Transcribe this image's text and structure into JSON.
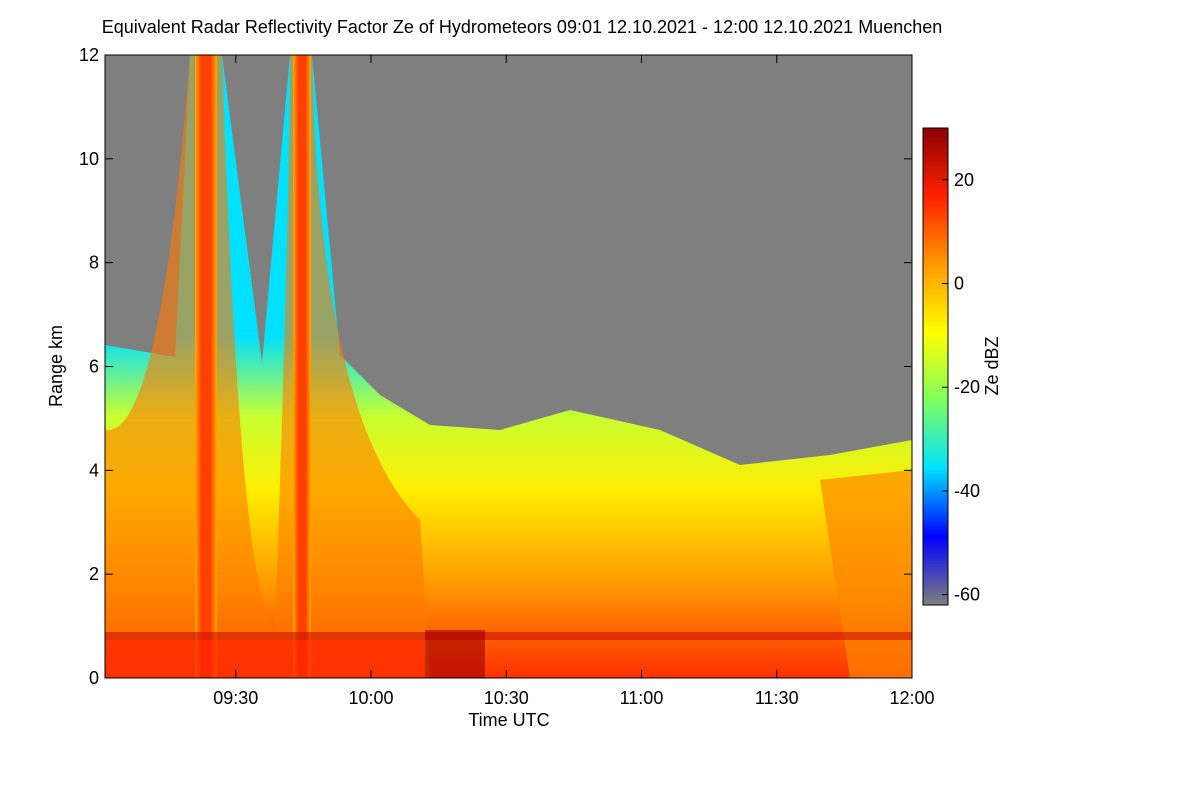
{
  "chart_data": {
    "type": "heatmap",
    "title": "Equivalent Radar Reflectivity Factor Ze of Hydrometeors   09:01 12.10.2021 - 12:00 12.10.2021 Muenchen",
    "x_label": "Time UTC",
    "y_label": "Range km",
    "colorbar_label": "Ze dBZ",
    "xlim": [
      541,
      720
    ],
    "xticks": [
      {
        "value": 570,
        "label": "09:30"
      },
      {
        "value": 600,
        "label": "10:00"
      },
      {
        "value": 630,
        "label": "10:30"
      },
      {
        "value": 660,
        "label": "11:00"
      },
      {
        "value": 690,
        "label": "11:30"
      },
      {
        "value": 720,
        "label": "12:00"
      }
    ],
    "ylim": [
      0,
      12
    ],
    "yticks": [
      0,
      2,
      4,
      6,
      8,
      10,
      12
    ],
    "clim": [
      -62,
      30
    ],
    "cticks": [
      -60,
      -40,
      -20,
      0,
      20
    ],
    "colormap": [
      "#7f7f7f",
      "#0000ff",
      "#00e0ff",
      "#7fff60",
      "#ffff00",
      "#ff9900",
      "#ff2000",
      "#8b0000"
    ]
  }
}
